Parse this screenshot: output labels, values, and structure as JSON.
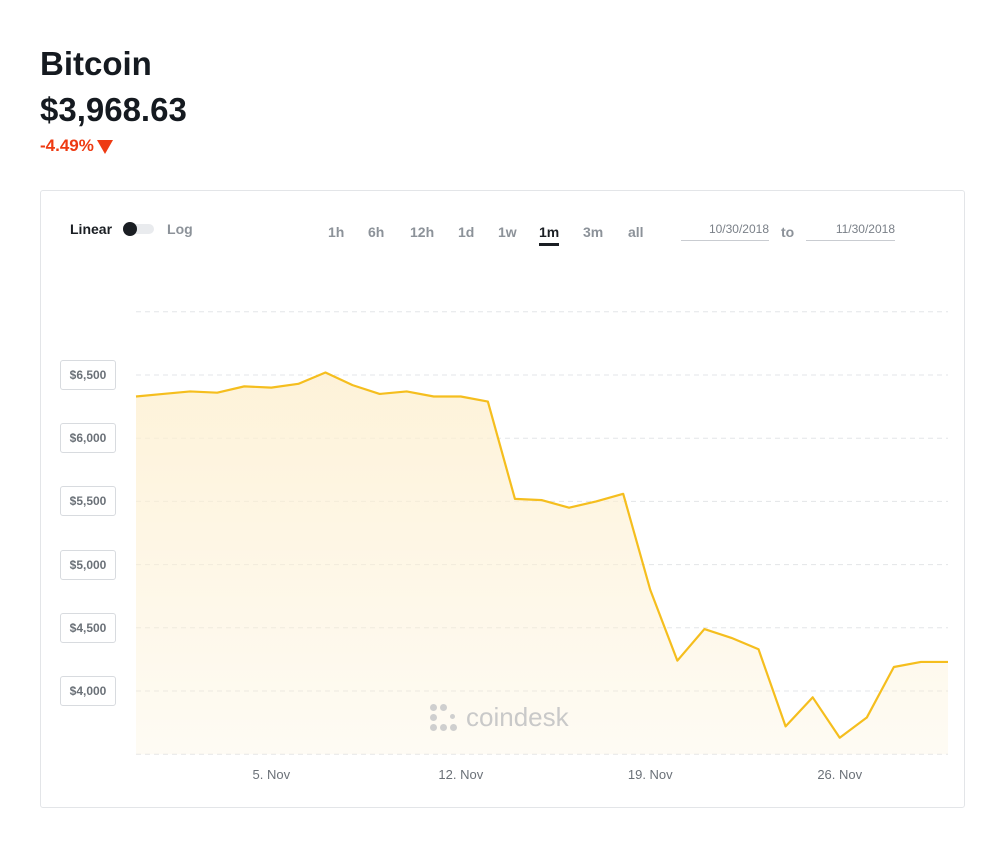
{
  "header": {
    "title": "Bitcoin",
    "price": "$3,968.63",
    "change": "-4.49%",
    "change_color": "#ee3a12"
  },
  "controls": {
    "scale_linear": "Linear",
    "scale_log": "Log",
    "ranges": [
      "1h",
      "6h",
      "12h",
      "1d",
      "1w",
      "1m",
      "3m",
      "all"
    ],
    "active_range": "1m",
    "date_from": "10/30/2018",
    "date_to": "11/30/2018",
    "to_label": "to"
  },
  "watermark": "coindesk",
  "chart_data": {
    "type": "area",
    "line_color": "#f5be1e",
    "fill_color": "#fdf0d2",
    "x": [
      "Oct 31",
      "Nov 1",
      "Nov 2",
      "Nov 3",
      "Nov 4",
      "Nov 5",
      "Nov 6",
      "Nov 7",
      "Nov 8",
      "Nov 9",
      "Nov 10",
      "Nov 11",
      "Nov 12",
      "Nov 13",
      "Nov 14",
      "Nov 15",
      "Nov 16",
      "Nov 17",
      "Nov 18",
      "Nov 19",
      "Nov 20",
      "Nov 21",
      "Nov 22",
      "Nov 23",
      "Nov 24",
      "Nov 25",
      "Nov 26",
      "Nov 27",
      "Nov 28",
      "Nov 29",
      "Nov 30"
    ],
    "values": [
      6330,
      6350,
      6370,
      6360,
      6410,
      6400,
      6430,
      6520,
      6420,
      6350,
      6370,
      6330,
      6330,
      6290,
      5520,
      5510,
      5450,
      5500,
      5560,
      4800,
      4240,
      4490,
      4420,
      4330,
      3720,
      3950,
      3630,
      3790,
      4190,
      4230,
      4230
    ],
    "ylim": [
      3500,
      7000
    ],
    "yticks": [
      4000,
      4500,
      5000,
      5500,
      6000,
      6500
    ],
    "ytick_labels": [
      "$4,000",
      "$4,500",
      "$5,000",
      "$5,500",
      "$6,000",
      "$6,500"
    ],
    "xtick_labels": [
      "5. Nov",
      "12. Nov",
      "19. Nov",
      "26. Nov"
    ],
    "xtick_indices": [
      5,
      12,
      19,
      26
    ],
    "grid": true
  }
}
